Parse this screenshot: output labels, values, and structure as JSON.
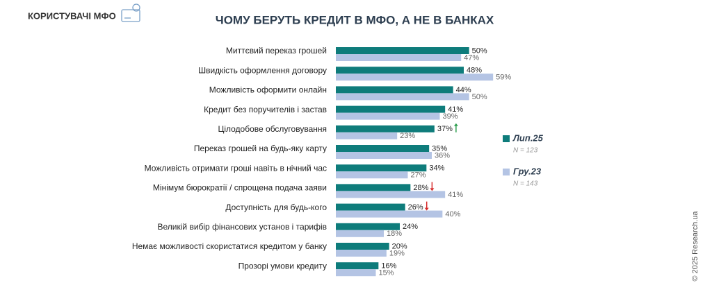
{
  "header": {
    "title": "КОРИСТУВАЧІ МФО"
  },
  "footer": {
    "copyright": "© 2025 Research.ua"
  },
  "chart_data": {
    "type": "bar",
    "orientation": "horizontal",
    "title": "ЧОМУ БЕРУТЬ КРЕДИТ В МФО, А НЕ В БАНКАХ",
    "categories": [
      "Миттєвий переказ грошей",
      "Швидкість оформлення договору",
      "Можливість оформити онлайн",
      "Кредит без поручителів і застав",
      "Цілодобове обслуговування",
      "Переказ грошей на будь-яку карту",
      "Можливість отримати гроші навіть в нічний час",
      "Мінімум бюрократії / спрощена подача заяви",
      "Доступність для будь-кого",
      "Великій вибір фінансових установ і тарифів",
      "Немає можливості скористатися кредитом у банку",
      "Прозорі умови кредиту"
    ],
    "series": [
      {
        "name": "Лип.25",
        "note": "N = 123",
        "color": "#0e7c7b",
        "values": [
          50,
          48,
          44,
          41,
          37,
          35,
          34,
          28,
          26,
          24,
          20,
          16
        ],
        "value_labels": [
          "50%",
          "48%",
          "44%",
          "41%",
          "37%",
          "35%",
          "34%",
          "28%",
          "26%",
          "24%",
          "20%",
          "16%"
        ],
        "arrows": [
          null,
          null,
          null,
          null,
          "up",
          null,
          null,
          "down",
          "down",
          null,
          null,
          null
        ]
      },
      {
        "name": "Гру.23",
        "note": "N = 143",
        "color": "#b4c4e4",
        "values": [
          47,
          59,
          50,
          39,
          23,
          36,
          27,
          41,
          40,
          18,
          19,
          15
        ],
        "value_labels": [
          "47%",
          "59%",
          "50%",
          "39%",
          "23%",
          "36%",
          "27%",
          "41%",
          "40%",
          "18%",
          "19%",
          "15%"
        ]
      }
    ],
    "xlim": [
      0,
      60
    ],
    "legend": "right"
  }
}
